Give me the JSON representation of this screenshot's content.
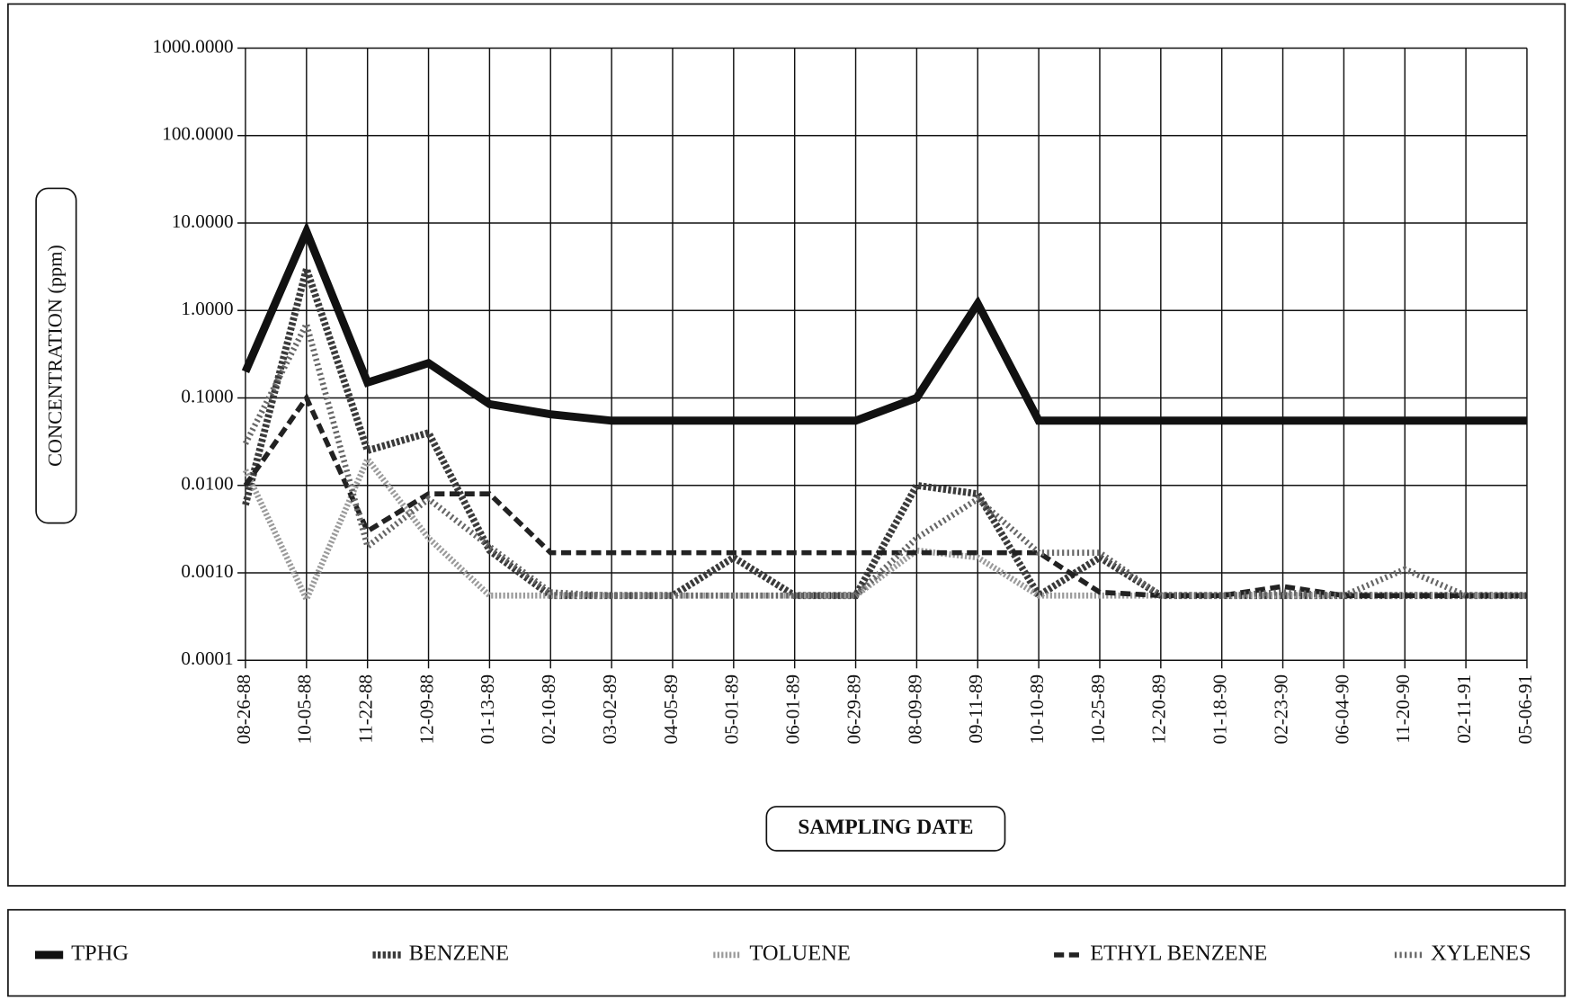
{
  "chart_data": {
    "type": "line",
    "x_label": "SAMPLING DATE",
    "y_label": "CONCENTRATION (ppm)",
    "categories": [
      "08-26-88",
      "10-05-88",
      "11-22-88",
      "12-09-88",
      "01-13-89",
      "02-10-89",
      "03-02-89",
      "04-05-89",
      "05-01-89",
      "06-01-89",
      "06-29-89",
      "08-09-89",
      "09-11-89",
      "10-10-89",
      "10-25-89",
      "12-20-89",
      "01-18-90",
      "02-23-90",
      "06-04-90",
      "11-20-90",
      "02-11-91",
      "05-06-91"
    ],
    "series": [
      {
        "name": "TPHG",
        "color": "#111111",
        "values": [
          0.2,
          8,
          0.15,
          0.25,
          0.085,
          0.065,
          0.055,
          0.055,
          0.055,
          0.055,
          0.055,
          0.1,
          1.2,
          0.055,
          0.055,
          0.055,
          0.055,
          0.055,
          0.055,
          0.055,
          0.055,
          0.055
        ]
      },
      {
        "name": "BENZENE",
        "color": "#3a3a3a",
        "values": [
          0.006,
          3,
          0.025,
          0.04,
          0.0018,
          0.00055,
          0.00055,
          0.00055,
          0.0015,
          0.00055,
          0.00055,
          0.01,
          0.008,
          0.00055,
          0.0015,
          0.00055,
          0.00055,
          0.00055,
          0.00055,
          0.00055,
          0.00055,
          0.00055
        ]
      },
      {
        "name": "TOLUENE",
        "color": "#9a9a9a",
        "values": [
          0.015,
          0.0005,
          0.02,
          0.0025,
          0.00055,
          0.00055,
          0.00055,
          0.00055,
          0.00055,
          0.00055,
          0.00055,
          0.0018,
          0.0015,
          0.00055,
          0.00055,
          0.00055,
          0.00055,
          0.00055,
          0.00055,
          0.00055,
          0.00055,
          0.00055
        ]
      },
      {
        "name": "ETHYL BENZENE",
        "color": "#222222",
        "values": [
          0.01,
          0.1,
          0.003,
          0.008,
          0.008,
          0.0017,
          0.0017,
          0.0017,
          0.0017,
          0.0017,
          0.0017,
          0.0017,
          0.0017,
          0.0017,
          0.0006,
          0.00055,
          0.00055,
          0.0007,
          0.00055,
          0.00055,
          0.00055,
          0.00055
        ]
      },
      {
        "name": "XYLENES",
        "color": "#666666",
        "values": [
          0.03,
          0.7,
          0.002,
          0.007,
          0.002,
          0.0006,
          0.00055,
          0.00055,
          0.00055,
          0.00055,
          0.00055,
          0.0025,
          0.007,
          0.0017,
          0.0017,
          0.00055,
          0.00055,
          0.0006,
          0.00055,
          0.0011,
          0.00055,
          0.00055
        ]
      }
    ],
    "ylim": [
      0.0001,
      1000
    ],
    "yticks": [
      {
        "value": 0.0001,
        "label": "0.0001"
      },
      {
        "value": 0.001,
        "label": "0.0010"
      },
      {
        "value": 0.01,
        "label": "0.0100"
      },
      {
        "value": 0.1,
        "label": "0.1000"
      },
      {
        "value": 1,
        "label": "1.0000"
      },
      {
        "value": 10,
        "label": "10.0000"
      },
      {
        "value": 100,
        "label": "100.0000"
      },
      {
        "value": 1000,
        "label": "1000.0000"
      }
    ],
    "log_scale": true,
    "grid": true,
    "legend_position": "bottom"
  }
}
